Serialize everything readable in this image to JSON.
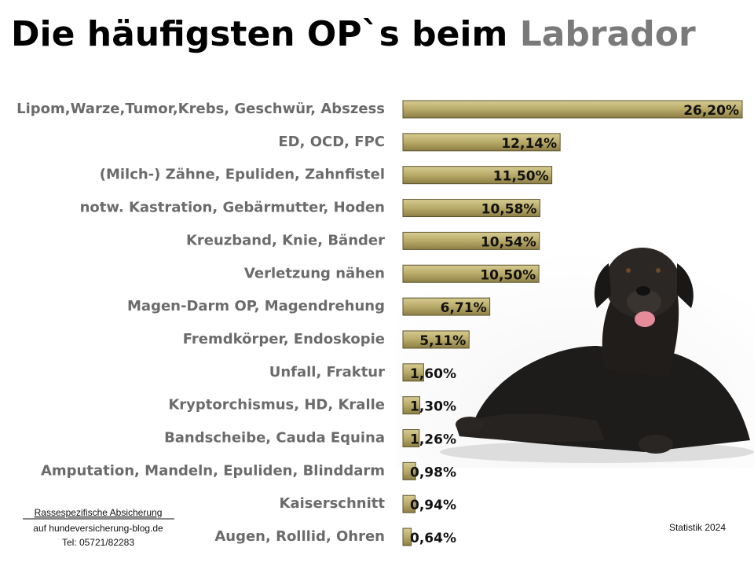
{
  "chart_data": {
    "type": "bar",
    "orientation": "horizontal",
    "title": "Die häufigsten OP`s beim",
    "title_highlight": "Labrador",
    "categories": [
      "Lipom,Warze,Tumor,Krebs, Geschwür, Abszess",
      "ED, OCD, FPC",
      "(Milch-) Zähne, Epuliden, Zahnfistel",
      "notw. Kastration, Gebärmutter, Hoden",
      "Kreuzband, Knie, Bänder",
      "Verletzung nähen",
      "Magen-Darm OP, Magendrehung",
      "Fremdkörper, Endoskopie",
      "Unfall, Fraktur",
      "Kryptorchismus, HD, Kralle",
      "Bandscheibe, Cauda Equina",
      "Amputation, Mandeln, Epuliden, Blinddarm",
      "Kaiserschnitt",
      "Augen, Rolllid, Ohren"
    ],
    "values": [
      26.2,
      12.14,
      11.5,
      10.58,
      10.54,
      10.5,
      6.71,
      5.11,
      1.6,
      1.3,
      1.26,
      0.98,
      0.94,
      0.64
    ],
    "value_labels": [
      "26,20%",
      "12,14%",
      "11,50%",
      "10,58%",
      "10,54%",
      "10,50%",
      "6,71%",
      "5,11%",
      "1,60%",
      "1,30%",
      "1,26%",
      "0,98%",
      "0,94%",
      "0,64%"
    ],
    "color": "#b8aa68",
    "source": [
      "Rassespezifische Absicherung",
      "auf hundeversicherung-blog.de",
      "Tel: 05721/82283"
    ],
    "note": "Statistik 2024"
  }
}
